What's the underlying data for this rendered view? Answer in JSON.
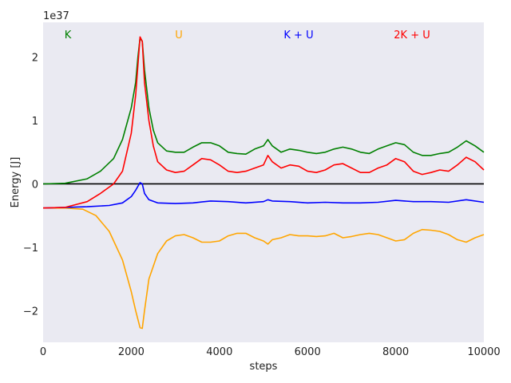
{
  "chart_data": {
    "type": "line",
    "xlabel": "steps",
    "ylabel": "Energy [J]",
    "y_multiplier_label": "1e37",
    "xlim": [
      0,
      10000
    ],
    "ylim": [
      -2.5,
      2.55
    ],
    "xticks": [
      0,
      2000,
      4000,
      6000,
      8000,
      10000
    ],
    "yticks": [
      -2,
      -1,
      0,
      1,
      2
    ],
    "ytick_labels": [
      "−2",
      "−1",
      "0",
      "1",
      "2"
    ],
    "grid": false,
    "background_color": "#eaeaf2",
    "zero_line": true,
    "legend_placement": "top, inline text labels",
    "series": [
      {
        "name": "K",
        "color": "#008000",
        "points": [
          [
            0,
            0
          ],
          [
            500,
            0.01
          ],
          [
            1000,
            0.08
          ],
          [
            1300,
            0.2
          ],
          [
            1600,
            0.4
          ],
          [
            1800,
            0.7
          ],
          [
            2000,
            1.2
          ],
          [
            2100,
            1.6
          ],
          [
            2150,
            2.0
          ],
          [
            2200,
            2.3
          ],
          [
            2250,
            2.25
          ],
          [
            2300,
            1.8
          ],
          [
            2400,
            1.2
          ],
          [
            2500,
            0.85
          ],
          [
            2600,
            0.65
          ],
          [
            2800,
            0.52
          ],
          [
            3000,
            0.5
          ],
          [
            3200,
            0.5
          ],
          [
            3400,
            0.58
          ],
          [
            3600,
            0.65
          ],
          [
            3800,
            0.65
          ],
          [
            4000,
            0.6
          ],
          [
            4200,
            0.5
          ],
          [
            4400,
            0.48
          ],
          [
            4600,
            0.47
          ],
          [
            4800,
            0.55
          ],
          [
            5000,
            0.6
          ],
          [
            5100,
            0.7
          ],
          [
            5200,
            0.6
          ],
          [
            5300,
            0.55
          ],
          [
            5400,
            0.5
          ],
          [
            5600,
            0.55
          ],
          [
            5800,
            0.53
          ],
          [
            6000,
            0.5
          ],
          [
            6200,
            0.48
          ],
          [
            6400,
            0.5
          ],
          [
            6600,
            0.55
          ],
          [
            6800,
            0.58
          ],
          [
            7000,
            0.55
          ],
          [
            7200,
            0.5
          ],
          [
            7400,
            0.48
          ],
          [
            7600,
            0.55
          ],
          [
            7800,
            0.6
          ],
          [
            8000,
            0.65
          ],
          [
            8200,
            0.62
          ],
          [
            8400,
            0.5
          ],
          [
            8600,
            0.45
          ],
          [
            8800,
            0.45
          ],
          [
            9000,
            0.48
          ],
          [
            9200,
            0.5
          ],
          [
            9400,
            0.58
          ],
          [
            9600,
            0.68
          ],
          [
            9800,
            0.6
          ],
          [
            10000,
            0.5
          ]
        ]
      },
      {
        "name": "U",
        "color": "#ffa500",
        "points": [
          [
            0,
            -0.38
          ],
          [
            500,
            -0.38
          ],
          [
            900,
            -0.4
          ],
          [
            1200,
            -0.5
          ],
          [
            1500,
            -0.75
          ],
          [
            1800,
            -1.2
          ],
          [
            2000,
            -1.7
          ],
          [
            2100,
            -2.0
          ],
          [
            2200,
            -2.27
          ],
          [
            2250,
            -2.28
          ],
          [
            2300,
            -2.0
          ],
          [
            2400,
            -1.5
          ],
          [
            2600,
            -1.1
          ],
          [
            2800,
            -0.9
          ],
          [
            3000,
            -0.82
          ],
          [
            3200,
            -0.8
          ],
          [
            3400,
            -0.85
          ],
          [
            3600,
            -0.92
          ],
          [
            3800,
            -0.92
          ],
          [
            4000,
            -0.9
          ],
          [
            4200,
            -0.82
          ],
          [
            4400,
            -0.78
          ],
          [
            4600,
            -0.78
          ],
          [
            4800,
            -0.85
          ],
          [
            5000,
            -0.9
          ],
          [
            5100,
            -0.95
          ],
          [
            5200,
            -0.88
          ],
          [
            5400,
            -0.85
          ],
          [
            5600,
            -0.8
          ],
          [
            5800,
            -0.82
          ],
          [
            6000,
            -0.82
          ],
          [
            6200,
            -0.83
          ],
          [
            6400,
            -0.82
          ],
          [
            6600,
            -0.78
          ],
          [
            6800,
            -0.85
          ],
          [
            7000,
            -0.83
          ],
          [
            7200,
            -0.8
          ],
          [
            7400,
            -0.78
          ],
          [
            7600,
            -0.8
          ],
          [
            7800,
            -0.85
          ],
          [
            8000,
            -0.9
          ],
          [
            8200,
            -0.88
          ],
          [
            8400,
            -0.78
          ],
          [
            8600,
            -0.72
          ],
          [
            8800,
            -0.73
          ],
          [
            9000,
            -0.75
          ],
          [
            9200,
            -0.8
          ],
          [
            9400,
            -0.88
          ],
          [
            9600,
            -0.92
          ],
          [
            9800,
            -0.85
          ],
          [
            10000,
            -0.8
          ]
        ]
      },
      {
        "name": "K + U",
        "color": "#0000ff",
        "points": [
          [
            0,
            -0.38
          ],
          [
            500,
            -0.37
          ],
          [
            1000,
            -0.36
          ],
          [
            1500,
            -0.34
          ],
          [
            1800,
            -0.3
          ],
          [
            2000,
            -0.2
          ],
          [
            2100,
            -0.1
          ],
          [
            2200,
            0.02
          ],
          [
            2250,
            0.0
          ],
          [
            2300,
            -0.15
          ],
          [
            2400,
            -0.25
          ],
          [
            2600,
            -0.3
          ],
          [
            3000,
            -0.31
          ],
          [
            3400,
            -0.3
          ],
          [
            3800,
            -0.27
          ],
          [
            4200,
            -0.28
          ],
          [
            4600,
            -0.3
          ],
          [
            5000,
            -0.28
          ],
          [
            5100,
            -0.25
          ],
          [
            5200,
            -0.27
          ],
          [
            5600,
            -0.28
          ],
          [
            6000,
            -0.3
          ],
          [
            6400,
            -0.29
          ],
          [
            6800,
            -0.3
          ],
          [
            7200,
            -0.3
          ],
          [
            7600,
            -0.29
          ],
          [
            8000,
            -0.26
          ],
          [
            8400,
            -0.28
          ],
          [
            8800,
            -0.28
          ],
          [
            9200,
            -0.29
          ],
          [
            9600,
            -0.25
          ],
          [
            10000,
            -0.29
          ]
        ]
      },
      {
        "name": "2K + U",
        "color": "#ff0000",
        "points": [
          [
            0,
            -0.38
          ],
          [
            500,
            -0.37
          ],
          [
            1000,
            -0.28
          ],
          [
            1300,
            -0.15
          ],
          [
            1600,
            0.0
          ],
          [
            1800,
            0.2
          ],
          [
            2000,
            0.8
          ],
          [
            2100,
            1.4
          ],
          [
            2200,
            2.32
          ],
          [
            2250,
            2.25
          ],
          [
            2300,
            1.6
          ],
          [
            2400,
            1.0
          ],
          [
            2500,
            0.6
          ],
          [
            2600,
            0.35
          ],
          [
            2800,
            0.22
          ],
          [
            3000,
            0.18
          ],
          [
            3200,
            0.2
          ],
          [
            3400,
            0.3
          ],
          [
            3600,
            0.4
          ],
          [
            3800,
            0.38
          ],
          [
            4000,
            0.3
          ],
          [
            4200,
            0.2
          ],
          [
            4400,
            0.18
          ],
          [
            4600,
            0.2
          ],
          [
            4800,
            0.25
          ],
          [
            5000,
            0.3
          ],
          [
            5100,
            0.45
          ],
          [
            5200,
            0.35
          ],
          [
            5400,
            0.25
          ],
          [
            5600,
            0.3
          ],
          [
            5800,
            0.28
          ],
          [
            6000,
            0.2
          ],
          [
            6200,
            0.18
          ],
          [
            6400,
            0.22
          ],
          [
            6600,
            0.3
          ],
          [
            6800,
            0.32
          ],
          [
            7000,
            0.25
          ],
          [
            7200,
            0.18
          ],
          [
            7400,
            0.18
          ],
          [
            7600,
            0.25
          ],
          [
            7800,
            0.3
          ],
          [
            8000,
            0.4
          ],
          [
            8200,
            0.35
          ],
          [
            8400,
            0.2
          ],
          [
            8600,
            0.15
          ],
          [
            8800,
            0.18
          ],
          [
            9000,
            0.22
          ],
          [
            9200,
            0.2
          ],
          [
            9400,
            0.3
          ],
          [
            9600,
            0.42
          ],
          [
            9800,
            0.35
          ],
          [
            10000,
            0.22
          ]
        ]
      }
    ]
  }
}
